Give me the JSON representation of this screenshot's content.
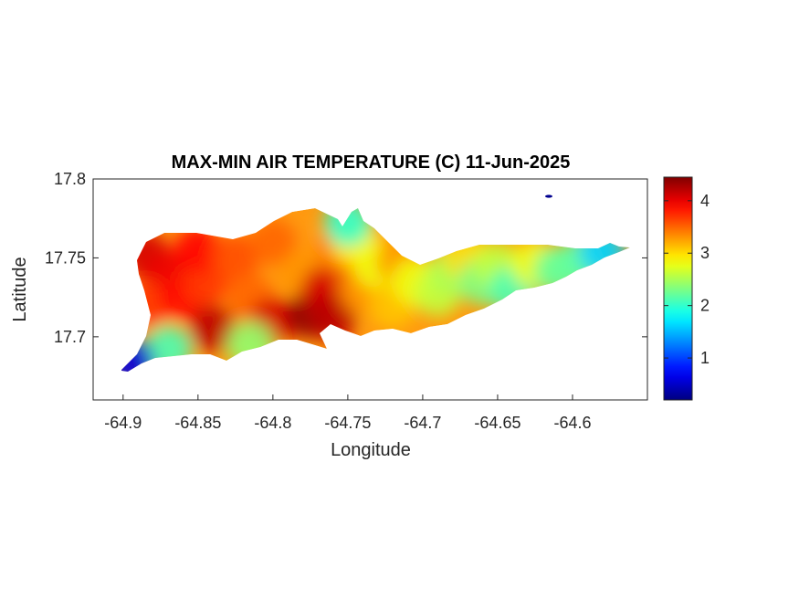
{
  "chart_data": {
    "type": "heatmap",
    "title": "MAX-MIN AIR TEMPERATURE (C) 11-Jun-2025",
    "xlabel": "Longitude",
    "ylabel": "Latitude",
    "xlim": [
      -64.92,
      -64.55
    ],
    "ylim": [
      17.66,
      17.8
    ],
    "xticks": [
      -64.9,
      -64.85,
      -64.8,
      -64.75,
      -64.7,
      -64.65,
      -64.6
    ],
    "xtick_labels": [
      "-64.9",
      "-64.85",
      "-64.8",
      "-64.75",
      "-64.7",
      "-64.65",
      "-64.6"
    ],
    "yticks": [
      17.7,
      17.75,
      17.8
    ],
    "ytick_labels": [
      "17.7",
      "17.75",
      "17.8"
    ],
    "colormap": "jet",
    "clim": [
      0.2,
      4.45
    ],
    "colorbar_ticks": [
      1,
      2,
      3,
      4
    ],
    "colorbar_tick_labels": [
      "1",
      "2",
      "3",
      "4"
    ],
    "grid": false,
    "field_samples": [
      {
        "lon": -64.885,
        "lat": 17.752,
        "value": 4.1
      },
      {
        "lon": -64.87,
        "lat": 17.74,
        "value": 4.0
      },
      {
        "lon": -64.885,
        "lat": 17.72,
        "value": 3.7
      },
      {
        "lon": -64.86,
        "lat": 17.725,
        "value": 3.9
      },
      {
        "lon": -64.84,
        "lat": 17.705,
        "value": 4.2
      },
      {
        "lon": -64.845,
        "lat": 17.735,
        "value": 3.7
      },
      {
        "lon": -64.85,
        "lat": 17.755,
        "value": 3.9
      },
      {
        "lon": -64.825,
        "lat": 17.75,
        "value": 3.6
      },
      {
        "lon": -64.815,
        "lat": 17.725,
        "value": 3.5
      },
      {
        "lon": -64.8,
        "lat": 17.71,
        "value": 4.1
      },
      {
        "lon": -64.8,
        "lat": 17.76,
        "value": 3.5
      },
      {
        "lon": -64.78,
        "lat": 17.74,
        "value": 3.3
      },
      {
        "lon": -64.775,
        "lat": 17.714,
        "value": 4.4
      },
      {
        "lon": -64.765,
        "lat": 17.73,
        "value": 4.1
      },
      {
        "lon": -64.76,
        "lat": 17.712,
        "value": 4.2
      },
      {
        "lon": -64.755,
        "lat": 17.755,
        "value": 3.4
      },
      {
        "lon": -64.745,
        "lat": 17.76,
        "value": 2.9
      },
      {
        "lon": -64.74,
        "lat": 17.73,
        "value": 3.3
      },
      {
        "lon": -64.73,
        "lat": 17.745,
        "value": 2.8
      },
      {
        "lon": -64.72,
        "lat": 17.72,
        "value": 3.1
      },
      {
        "lon": -64.715,
        "lat": 17.748,
        "value": 3.3
      },
      {
        "lon": -64.705,
        "lat": 17.735,
        "value": 2.8
      },
      {
        "lon": -64.69,
        "lat": 17.728,
        "value": 2.6
      },
      {
        "lon": -64.68,
        "lat": 17.742,
        "value": 2.5
      },
      {
        "lon": -64.67,
        "lat": 17.75,
        "value": 3.0
      },
      {
        "lon": -64.66,
        "lat": 17.735,
        "value": 2.3
      },
      {
        "lon": -64.65,
        "lat": 17.745,
        "value": 2.6
      },
      {
        "lon": -64.64,
        "lat": 17.73,
        "value": 2.1
      },
      {
        "lon": -64.625,
        "lat": 17.746,
        "value": 2.8
      },
      {
        "lon": -64.61,
        "lat": 17.742,
        "value": 2.2
      },
      {
        "lon": -64.595,
        "lat": 17.748,
        "value": 2.2
      },
      {
        "lon": -64.58,
        "lat": 17.754,
        "value": 1.6
      },
      {
        "lon": -64.815,
        "lat": 17.695,
        "value": 2.4
      },
      {
        "lon": -64.87,
        "lat": 17.692,
        "value": 2.1
      },
      {
        "lon": -64.895,
        "lat": 17.684,
        "value": 0.6
      },
      {
        "lon": -64.75,
        "lat": 17.772,
        "value": 2.0
      },
      {
        "lon": -64.625,
        "lat": 17.788,
        "value": 0.5
      }
    ]
  }
}
